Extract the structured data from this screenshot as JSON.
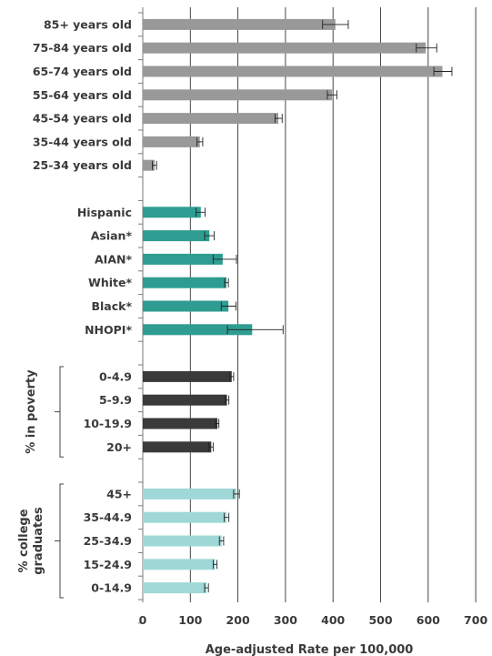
{
  "chart_data": {
    "type": "bar",
    "orientation": "horizontal",
    "xlabel": "Age-adjusted Rate per 100,000",
    "xlim": [
      0,
      700
    ],
    "xticks": [
      0,
      100,
      200,
      300,
      400,
      500,
      600,
      700
    ],
    "grid": true,
    "error_bars": true,
    "groups": [
      {
        "title": "",
        "color": "#999999",
        "categories": [
          "85+ years old",
          "75-84 years old",
          "65-74 years old",
          "55-64 years old",
          "45-54 years old",
          "35-44 years old",
          "25-34 years old"
        ],
        "values": [
          405,
          595,
          630,
          398,
          285,
          120,
          25
        ],
        "err_low": [
          378,
          575,
          612,
          388,
          278,
          114,
          20
        ],
        "err_high": [
          432,
          618,
          650,
          408,
          293,
          126,
          29
        ]
      },
      {
        "title": "",
        "color": "#2e9c91",
        "categories": [
          "Hispanic",
          "Asian*",
          "AIAN*",
          "White*",
          "Black*",
          "NHOPI*"
        ],
        "values": [
          122,
          140,
          168,
          176,
          180,
          230
        ],
        "err_low": [
          112,
          130,
          148,
          172,
          165,
          178
        ],
        "err_high": [
          131,
          150,
          197,
          180,
          196,
          295
        ]
      },
      {
        "title": "% in poverty",
        "color": "#3a3a3a",
        "categories": [
          "0-4.9",
          "5-9.9",
          "10-19.9",
          "20+"
        ],
        "values": [
          187,
          177,
          157,
          144
        ],
        "err_low": [
          183,
          173,
          153,
          139
        ],
        "err_high": [
          191,
          181,
          160,
          148
        ]
      },
      {
        "title": "% college\ngraduates",
        "title_lines": [
          "% college",
          "graduates"
        ],
        "color": "#9fd8d6",
        "categories": [
          "45+",
          "35-44.9",
          "25-34.9",
          "15-24.9",
          "0-14.9"
        ],
        "values": [
          197,
          176,
          166,
          152,
          134
        ],
        "err_low": [
          191,
          171,
          161,
          148,
          130
        ],
        "err_high": [
          203,
          181,
          170,
          156,
          138
        ]
      }
    ]
  }
}
